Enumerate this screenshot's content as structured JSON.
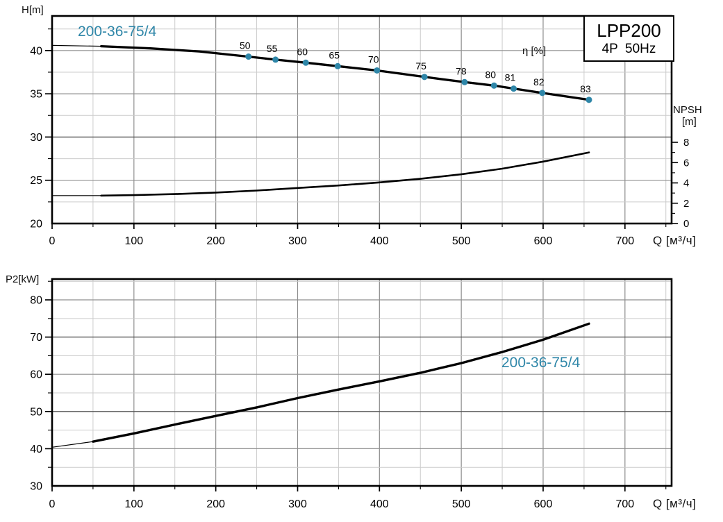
{
  "colors": {
    "accent": "#2E86A8",
    "curve": "#000000",
    "grid_minor": "#cccccc",
    "grid_major": "#8f8f8f",
    "grid_dark": "#555555",
    "frame": "#000000"
  },
  "title_box": {
    "model": "LPP200",
    "spec": "4P  50Hz"
  },
  "chart_data": [
    {
      "type": "line",
      "title": "LPP200 4P 50Hz",
      "xlabel": "Q [м³/ч]",
      "ylabel": "H[m]",
      "y2label_line1": "NPSH",
      "y2label_line2": "[m]",
      "curve_label": "200-36-75/4",
      "eta_label": "η [%]",
      "xlim": [
        0,
        757
      ],
      "ylim": [
        20,
        44
      ],
      "y2lim": [
        0,
        8
      ],
      "x_ticks": [
        0,
        100,
        200,
        300,
        400,
        500,
        600,
        700
      ],
      "x_minor_step": 50,
      "y_ticks": [
        20,
        25,
        30,
        35,
        40
      ],
      "y_minor_step": 2.5,
      "y2_ticks": [
        0,
        2,
        4,
        6,
        8
      ],
      "y2_minor_step": 1,
      "grid": true,
      "legend_position": "none",
      "dark_y_gridlines": [
        30
      ],
      "series": [
        {
          "name": "200-36-75/4",
          "axis": "y",
          "thin_until": 60,
          "points": [
            [
              0,
              40.6
            ],
            [
              60,
              40.5
            ],
            [
              120,
              40.25
            ],
            [
              180,
              39.9
            ],
            [
              240,
              39.3
            ],
            [
              273,
              38.95
            ],
            [
              310,
              38.6
            ],
            [
              349,
              38.2
            ],
            [
              397,
              37.7
            ],
            [
              455,
              36.95
            ],
            [
              504,
              36.35
            ],
            [
              540,
              35.95
            ],
            [
              564,
              35.6
            ],
            [
              599,
              35.1
            ],
            [
              656,
              34.3
            ]
          ]
        },
        {
          "name": "NPSH",
          "axis": "y2",
          "thin_until": 60,
          "points": [
            [
              0,
              2.75
            ],
            [
              60,
              2.75
            ],
            [
              100,
              2.8
            ],
            [
              150,
              2.9
            ],
            [
              200,
              3.05
            ],
            [
              250,
              3.25
            ],
            [
              300,
              3.5
            ],
            [
              350,
              3.75
            ],
            [
              400,
              4.05
            ],
            [
              450,
              4.4
            ],
            [
              500,
              4.85
            ],
            [
              550,
              5.4
            ],
            [
              600,
              6.1
            ],
            [
              656,
              7.0
            ]
          ]
        }
      ],
      "eta_points": [
        {
          "label": "50",
          "q": 240,
          "h": 39.3
        },
        {
          "label": "55",
          "q": 273,
          "h": 38.95
        },
        {
          "label": "60",
          "q": 310,
          "h": 38.6
        },
        {
          "label": "65",
          "q": 349,
          "h": 38.2
        },
        {
          "label": "70",
          "q": 397,
          "h": 37.7
        },
        {
          "label": "75",
          "q": 455,
          "h": 36.95
        },
        {
          "label": "78",
          "q": 504,
          "h": 36.35
        },
        {
          "label": "80",
          "q": 540,
          "h": 35.95
        },
        {
          "label": "81",
          "q": 564,
          "h": 35.6
        },
        {
          "label": "82",
          "q": 599,
          "h": 35.1
        },
        {
          "label": "83",
          "q": 656,
          "h": 34.3
        }
      ]
    },
    {
      "type": "line",
      "title": "",
      "xlabel": "Q [м³/ч]",
      "ylabel": "P2[kW]",
      "curve_label": "200-36-75/4",
      "xlim": [
        0,
        757
      ],
      "ylim": [
        30,
        85.6
      ],
      "x_ticks": [
        0,
        100,
        200,
        300,
        400,
        500,
        600,
        700
      ],
      "x_minor_step": 50,
      "y_ticks": [
        30,
        40,
        50,
        60,
        70,
        80
      ],
      "y_minor_step": 5,
      "grid": true,
      "legend_position": "none",
      "dark_y_gridlines": [
        50,
        70
      ],
      "series": [
        {
          "name": "200-36-75/4",
          "axis": "y",
          "thin_until": 50,
          "points": [
            [
              0,
              40.4
            ],
            [
              50,
              41.9
            ],
            [
              100,
              44.1
            ],
            [
              150,
              46.5
            ],
            [
              200,
              48.8
            ],
            [
              250,
              51.1
            ],
            [
              300,
              53.6
            ],
            [
              350,
              55.9
            ],
            [
              400,
              58.1
            ],
            [
              450,
              60.4
            ],
            [
              500,
              63.0
            ],
            [
              550,
              66.0
            ],
            [
              600,
              69.3
            ],
            [
              656,
              73.6
            ]
          ]
        }
      ]
    }
  ]
}
